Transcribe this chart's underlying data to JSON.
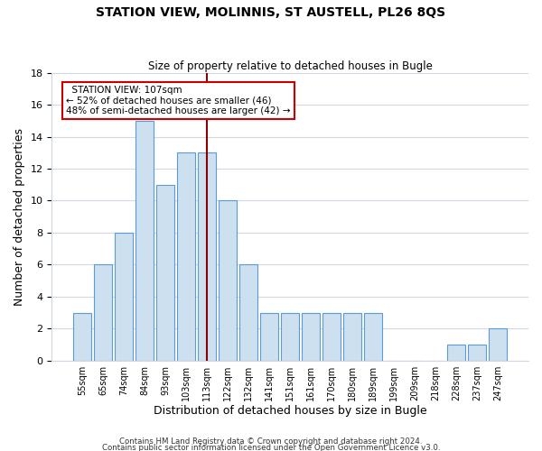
{
  "title": "STATION VIEW, MOLINNIS, ST AUSTELL, PL26 8QS",
  "subtitle": "Size of property relative to detached houses in Bugle",
  "xlabel": "Distribution of detached houses by size in Bugle",
  "ylabel": "Number of detached properties",
  "bar_labels": [
    "55sqm",
    "65sqm",
    "74sqm",
    "84sqm",
    "93sqm",
    "103sqm",
    "113sqm",
    "122sqm",
    "132sqm",
    "141sqm",
    "151sqm",
    "161sqm",
    "170sqm",
    "180sqm",
    "189sqm",
    "199sqm",
    "209sqm",
    "218sqm",
    "228sqm",
    "237sqm",
    "247sqm"
  ],
  "bar_heights": [
    3,
    6,
    8,
    15,
    11,
    13,
    13,
    10,
    6,
    3,
    3,
    3,
    3,
    3,
    3,
    0,
    0,
    0,
    1,
    1,
    2
  ],
  "bar_color": "#cce0f0",
  "bar_edge_color": "#5b9bd5",
  "vline_x": 6,
  "vline_color": "#8b0000",
  "annotation_title": "STATION VIEW: 107sqm",
  "annotation_line1": "← 52% of detached houses are smaller (46)",
  "annotation_line2": "48% of semi-detached houses are larger (42) →",
  "annotation_box_color": "#ffffff",
  "annotation_box_edge": "#cc0000",
  "ylim": [
    0,
    18
  ],
  "yticks": [
    0,
    2,
    4,
    6,
    8,
    10,
    12,
    14,
    16,
    18
  ],
  "footer1": "Contains HM Land Registry data © Crown copyright and database right 2024.",
  "footer2": "Contains public sector information licensed under the Open Government Licence v3.0.",
  "background_color": "#ffffff",
  "grid_color": "#d0d8e4"
}
